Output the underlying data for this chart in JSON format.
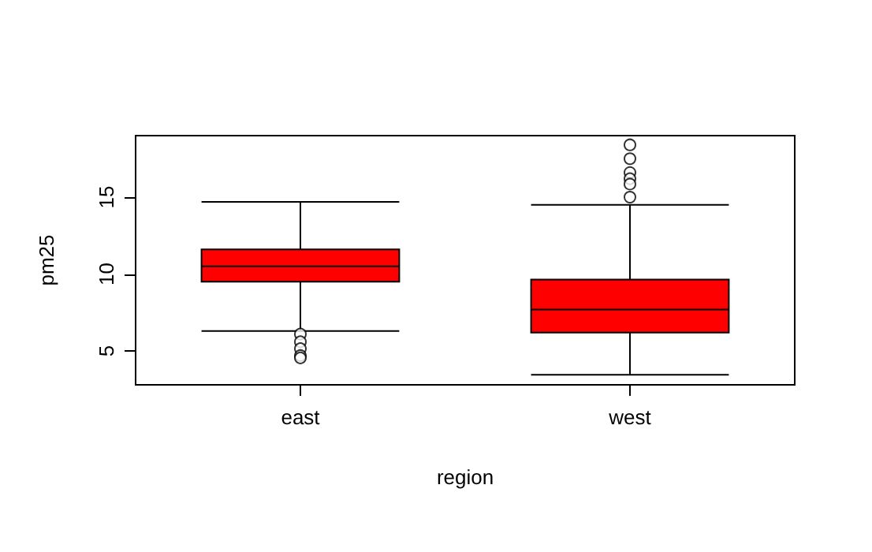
{
  "chart_data": {
    "type": "box",
    "xlabel": "region",
    "ylabel": "pm25",
    "categories": [
      "east",
      "west"
    ],
    "series": [
      {
        "color": "#ff0000",
        "boxes": [
          {
            "low": 6.3,
            "q1": 9.5,
            "median": 10.5,
            "q3": 11.6,
            "high": 14.7,
            "outliers": [
              6.1,
              5.6,
              5.15,
              4.7,
              4.55
            ]
          },
          {
            "low": 3.45,
            "q1": 6.2,
            "median": 7.7,
            "q3": 9.65,
            "high": 14.5,
            "outliers": [
              18.4,
              17.5,
              16.6,
              16.2,
              15.85,
              15.0
            ]
          }
        ]
      }
    ],
    "ylim": [
      2.8,
      19.0
    ],
    "yticks": [
      5,
      10,
      15
    ],
    "grid": false
  }
}
